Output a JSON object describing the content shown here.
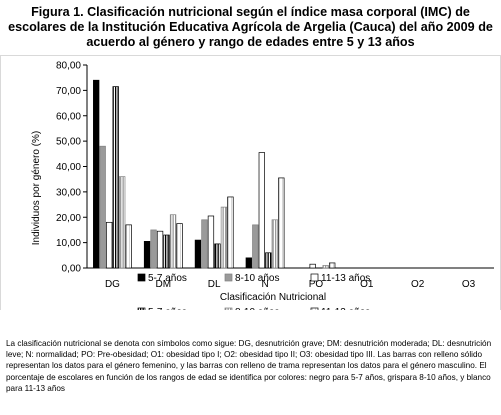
{
  "figure": {
    "label": "Figura 1",
    "title_rest": ". Clasificación nutricional según el índice masa corporal (IMC) de escolares de la Institución Educativa Agrícola de Argelia (Cauca) del año 2009 de acuerdo al género y rango de edades entre 5 y 13 años",
    "caption": "La clasificación nutricional se denota con símbolos como sigue: DG, desnutrición grave; DM: desnutrición moderada; DL: desnutrición leve; N: normalidad; PO: Pre-obesidad; O1: obesidad tipo I; O2: obesidad tipo II; O3: obesidad tipo III. Las barras con relleno sólido representan los datos para el género femenino, y las barras con relleno de trama representan los datos para el género masculino. El porcentaje de escolares en función de los rangos de edad se identifica por colores: negro para 5-7 años, grispara 8-10 años, y blanco para 11-13 años"
  },
  "chart_data": {
    "type": "bar",
    "title": "",
    "xlabel": "Clasificación Nutricional",
    "ylabel": "Individuos por género (%)",
    "ylim": [
      0,
      80
    ],
    "ytick_step": 10,
    "ytick_labels": [
      "0,00",
      "10,00",
      "20,00",
      "30,00",
      "40,00",
      "50,00",
      "60,00",
      "70,00",
      "80,00"
    ],
    "categories": [
      "DG",
      "DM",
      "DL",
      "N",
      "PO",
      "O1",
      "O2",
      "O3"
    ],
    "grid": false,
    "legend_position": "bottom",
    "series": [
      {
        "name": "5-7 años",
        "style": "solid-black",
        "values": [
          74,
          10.5,
          11,
          4,
          0,
          0,
          0,
          0
        ]
      },
      {
        "name": "8-10 años",
        "style": "solid-gray",
        "values": [
          48,
          15,
          19,
          17,
          0,
          0,
          0,
          0
        ]
      },
      {
        "name": "11-13 años",
        "style": "solid-white",
        "values": [
          18,
          14.5,
          20.5,
          45.5,
          1.5,
          0,
          0,
          0
        ]
      },
      {
        "name": "5-7 años",
        "style": "hatch-black",
        "values": [
          71.5,
          13,
          9.5,
          6,
          0,
          0,
          0,
          0
        ]
      },
      {
        "name": "8-10 años",
        "style": "hatch-gray",
        "values": [
          36,
          21,
          24,
          19,
          1,
          0,
          0,
          0
        ]
      },
      {
        "name": "11-13 años",
        "style": "hatch-white",
        "values": [
          17,
          17.5,
          28,
          35.5,
          2,
          0,
          0,
          0
        ]
      }
    ]
  }
}
